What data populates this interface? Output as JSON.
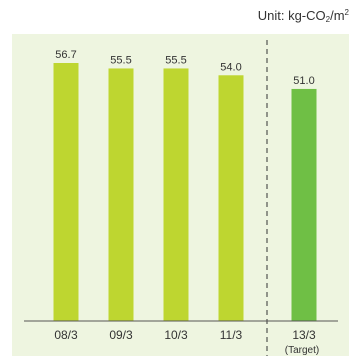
{
  "unit": {
    "prefix": "Unit: kg-CO",
    "sub": "2",
    "mid": "/m",
    "sup": "2"
  },
  "chart_data": {
    "type": "bar",
    "categories": [
      "08/3",
      "09/3",
      "10/3",
      "11/3",
      "13/3"
    ],
    "values": [
      56.7,
      55.5,
      55.5,
      54.0,
      51.0
    ],
    "value_labels": [
      "56.7",
      "55.5",
      "55.5",
      "54.0",
      "51.0"
    ],
    "target_note": "(Target)",
    "ylim": [
      0,
      56.7
    ],
    "grid": false,
    "colors": {
      "actual": "#bed630",
      "target": "#6fbf45",
      "background": "#eef5e0",
      "divider": "#333333"
    }
  }
}
